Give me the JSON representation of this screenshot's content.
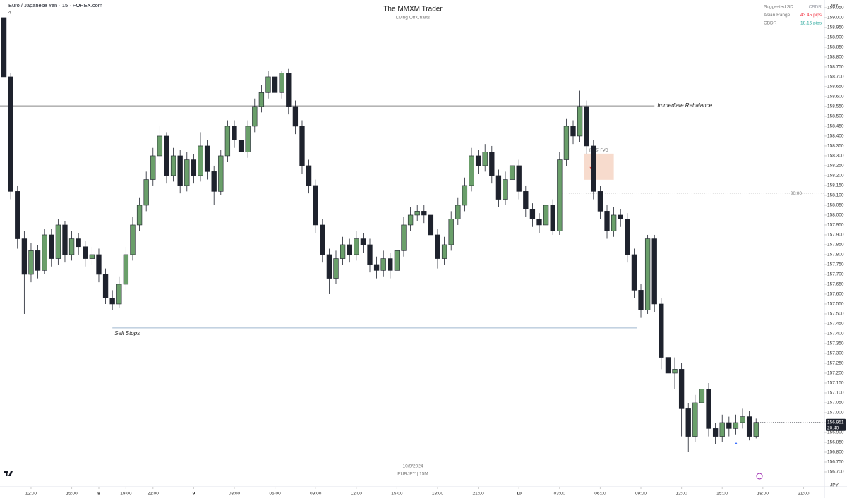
{
  "chart_data": {
    "type": "candlestick",
    "symbol_label": "Euro / Japanese Yen · 15 · FOREX.com",
    "badge": "4",
    "title": "The MMXM Trader",
    "subtitle": "Living Off Charts",
    "footer_date": "10/9/2024",
    "footer_symbol": "EURJPY | 15M",
    "axis_unit": "JPY",
    "last_price_label": "156.951",
    "countdown": "20:40",
    "up_color": "#6a9f6a",
    "down_color": "#1e222d",
    "info_table": [
      {
        "label": "Suggested SD",
        "value": "CBDR",
        "color": "#9598a1"
      },
      {
        "label": "Asian Range",
        "value": "43.45 pips",
        "color": "#f23645"
      },
      {
        "label": "CBDR",
        "value": "18.15 pips",
        "color": "#26a69a"
      }
    ],
    "levels": [
      {
        "label": "Immediate Rebalance",
        "value": 158.553,
        "x_start": -2.29,
        "x_end": 46.0,
        "color": "#888888",
        "style": "solid"
      },
      {
        "label": "Sell Stops",
        "value": 157.429,
        "x_start": 6.0,
        "x_end": 44.7,
        "color": "#9fb6cf",
        "style": "solid"
      },
      {
        "label": "00:00",
        "value": 158.11,
        "x_start": 38.9,
        "x_end": 58.54,
        "color": "#d0d0d0",
        "style": "dotted"
      }
    ],
    "fvg": {
      "label": "[m15] FVG",
      "top": 158.311,
      "bottom": 158.179,
      "x_start": 40.8,
      "x_end": 43.0,
      "color": "#f6d5c4"
    },
    "xlim": [
      -2.29,
      58.54
    ],
    "ylim": [
      156.625,
      159.089
    ],
    "xticks": [
      {
        "value": 0,
        "label": "12:00"
      },
      {
        "value": 3,
        "label": "15:00"
      },
      {
        "value": 5,
        "label": "8"
      },
      {
        "value": 7,
        "label": "19:00"
      },
      {
        "value": 9,
        "label": "21:00"
      },
      {
        "value": 12,
        "label": "9"
      },
      {
        "value": 15,
        "label": "03:00"
      },
      {
        "value": 18,
        "label": "06:00"
      },
      {
        "value": 21,
        "label": "09:00"
      },
      {
        "value": 24,
        "label": "12:00"
      },
      {
        "value": 27,
        "label": "15:00"
      },
      {
        "value": 30,
        "label": "18:00"
      },
      {
        "value": 33,
        "label": "21:00"
      },
      {
        "value": 36,
        "label": "10"
      },
      {
        "value": 39,
        "label": "03:00"
      },
      {
        "value": 42,
        "label": "06:00"
      },
      {
        "value": 45,
        "label": "09:00"
      },
      {
        "value": 48,
        "label": "12:00"
      },
      {
        "value": 51,
        "label": "15:00"
      },
      {
        "value": 54,
        "label": "18:00"
      },
      {
        "value": 57,
        "label": "21:00"
      }
    ],
    "yticks": [
      {
        "value": 156.7,
        "label": "156.700"
      },
      {
        "value": 156.75,
        "label": "156.750"
      },
      {
        "value": 156.8,
        "label": "156.800"
      },
      {
        "value": 156.85,
        "label": "156.850"
      },
      {
        "value": 156.9,
        "label": "156.900"
      },
      {
        "value": 156.95,
        "label": "156.950"
      },
      {
        "value": 157.0,
        "label": "157.000"
      },
      {
        "value": 157.05,
        "label": "157.050"
      },
      {
        "value": 157.1,
        "label": "157.100"
      },
      {
        "value": 157.15,
        "label": "157.150"
      },
      {
        "value": 157.2,
        "label": "157.200"
      },
      {
        "value": 157.25,
        "label": "157.250"
      },
      {
        "value": 157.3,
        "label": "157.300"
      },
      {
        "value": 157.35,
        "label": "157.350"
      },
      {
        "value": 157.4,
        "label": "157.400"
      },
      {
        "value": 157.45,
        "label": "157.450"
      },
      {
        "value": 157.5,
        "label": "157.500"
      },
      {
        "value": 157.55,
        "label": "157.550"
      },
      {
        "value": 157.6,
        "label": "157.600"
      },
      {
        "value": 157.65,
        "label": "157.650"
      },
      {
        "value": 157.7,
        "label": "157.700"
      },
      {
        "value": 157.75,
        "label": "157.750"
      },
      {
        "value": 157.8,
        "label": "157.800"
      },
      {
        "value": 157.85,
        "label": "157.850"
      },
      {
        "value": 157.9,
        "label": "157.900"
      },
      {
        "value": 157.95,
        "label": "157.950"
      },
      {
        "value": 158.0,
        "label": "158.000"
      },
      {
        "value": 158.05,
        "label": "158.050"
      },
      {
        "value": 158.1,
        "label": "158.100"
      },
      {
        "value": 158.15,
        "label": "158.150"
      },
      {
        "value": 158.2,
        "label": "158.200"
      },
      {
        "value": 158.25,
        "label": "158.250"
      },
      {
        "value": 158.3,
        "label": "158.300"
      },
      {
        "value": 158.35,
        "label": "158.350"
      },
      {
        "value": 158.4,
        "label": "158.400"
      },
      {
        "value": 158.45,
        "label": "158.450"
      },
      {
        "value": 158.5,
        "label": "158.500"
      },
      {
        "value": 158.55,
        "label": "158.550"
      },
      {
        "value": 158.6,
        "label": "158.600"
      },
      {
        "value": 158.65,
        "label": "158.650"
      },
      {
        "value": 158.7,
        "label": "158.700"
      },
      {
        "value": 158.75,
        "label": "158.750"
      },
      {
        "value": 158.8,
        "label": "158.800"
      },
      {
        "value": 158.85,
        "label": "158.850"
      },
      {
        "value": 158.9,
        "label": "158.900"
      },
      {
        "value": 158.95,
        "label": "158.950"
      },
      {
        "value": 159.0,
        "label": "159.000"
      },
      {
        "value": 159.05,
        "label": "159.050"
      }
    ],
    "x": [
      -2,
      -1.5,
      -1,
      -0.5,
      0,
      0.5,
      1,
      1.5,
      2,
      2.5,
      3,
      3.5,
      4,
      4.5,
      5,
      5.5,
      6,
      6.5,
      7,
      7.5,
      8,
      8.5,
      9,
      9.5,
      10,
      10.5,
      11,
      11.5,
      12,
      12.5,
      13,
      13.5,
      14,
      14.5,
      15,
      15.5,
      16,
      16.5,
      17,
      17.5,
      18,
      18.5,
      19,
      19.5,
      20,
      20.5,
      21,
      21.5,
      22,
      22.5,
      23,
      23.5,
      24,
      24.5,
      25,
      25.5,
      26,
      26.5,
      27,
      27.5,
      28,
      28.5,
      29,
      29.5,
      30,
      30.5,
      31,
      31.5,
      32,
      32.5,
      33,
      33.5,
      34,
      34.5,
      35,
      35.5,
      36,
      36.5,
      37,
      37.5,
      38,
      38.5,
      39,
      39.5,
      40,
      40.5,
      41,
      41.5,
      42,
      42.5,
      43,
      43.5,
      44,
      44.5,
      45,
      45.5,
      46,
      46.5,
      47,
      47.5,
      48,
      48.5,
      49,
      49.5,
      50,
      50.5,
      51,
      51.5,
      52,
      52.5,
      53,
      53.5
    ],
    "open": [
      159.0,
      158.7,
      158.12,
      157.88,
      157.7,
      157.82,
      157.72,
      157.9,
      157.78,
      157.95,
      157.8,
      157.88,
      157.84,
      157.78,
      157.8,
      157.7,
      157.58,
      157.55,
      157.65,
      157.8,
      157.95,
      158.05,
      158.18,
      158.3,
      158.4,
      158.2,
      158.3,
      158.15,
      158.28,
      158.2,
      158.35,
      158.22,
      158.12,
      158.3,
      158.45,
      158.38,
      158.32,
      158.45,
      158.55,
      158.62,
      158.7,
      158.62,
      158.72,
      158.55,
      158.45,
      158.25,
      158.15,
      157.95,
      157.8,
      157.68,
      157.78,
      157.85,
      157.8,
      157.88,
      157.85,
      157.75,
      157.72,
      157.78,
      157.72,
      157.82,
      157.95,
      158.0,
      158.02,
      158.0,
      157.9,
      157.78,
      157.85,
      157.98,
      158.05,
      158.15,
      158.3,
      158.25,
      158.32,
      158.2,
      158.08,
      158.18,
      158.25,
      158.12,
      158.03,
      157.98,
      157.95,
      158.05,
      157.92,
      158.28,
      158.45,
      158.4,
      158.55,
      158.35,
      158.12,
      158.02,
      157.92,
      158.0,
      157.98,
      157.8,
      157.62,
      157.52,
      157.88,
      157.55,
      157.28,
      157.2,
      157.22,
      157.02,
      156.88,
      157.05,
      157.12,
      156.92,
      156.88,
      156.95,
      156.92,
      156.95,
      156.98,
      156.88
    ],
    "high": [
      159.05,
      158.72,
      158.15,
      157.92,
      157.86,
      157.85,
      157.93,
      157.93,
      157.98,
      157.97,
      157.92,
      157.91,
      157.87,
      157.84,
      157.83,
      157.73,
      157.62,
      157.69,
      157.84,
      157.99,
      158.09,
      158.22,
      158.34,
      158.45,
      158.42,
      158.34,
      158.33,
      158.32,
      158.31,
      158.42,
      158.38,
      158.25,
      158.33,
      158.48,
      158.48,
      158.41,
      158.48,
      158.59,
      158.66,
      158.73,
      158.73,
      158.73,
      158.74,
      158.58,
      158.48,
      158.28,
      158.18,
      157.98,
      157.83,
      157.82,
      157.89,
      157.88,
      157.92,
      157.91,
      157.88,
      157.79,
      157.82,
      157.81,
      157.86,
      157.99,
      158.04,
      158.05,
      158.05,
      158.03,
      157.93,
      157.89,
      158.02,
      158.09,
      158.19,
      158.34,
      158.33,
      158.36,
      158.35,
      158.23,
      158.22,
      158.29,
      158.28,
      158.15,
      158.06,
      158.01,
      158.09,
      158.08,
      158.32,
      158.49,
      158.48,
      158.63,
      158.58,
      158.38,
      158.15,
      158.05,
      158.04,
      158.03,
      158.01,
      157.83,
      157.65,
      157.9,
      157.9,
      157.58,
      157.31,
      157.28,
      157.25,
      157.05,
      157.09,
      157.18,
      157.15,
      156.95,
      156.99,
      156.98,
      156.99,
      157.02,
      157.01,
      156.97
    ],
    "low": [
      158.68,
      158.08,
      157.83,
      157.5,
      157.66,
      157.68,
      157.7,
      157.74,
      157.75,
      157.76,
      157.77,
      157.8,
      157.74,
      157.75,
      157.66,
      157.55,
      157.52,
      157.53,
      157.62,
      157.77,
      157.92,
      158.02,
      158.15,
      158.26,
      158.16,
      158.17,
      158.11,
      158.12,
      158.16,
      158.17,
      158.18,
      158.05,
      158.1,
      158.27,
      158.34,
      158.28,
      158.29,
      158.42,
      158.52,
      158.59,
      158.59,
      158.59,
      158.51,
      158.41,
      158.21,
      158.11,
      157.91,
      157.76,
      157.6,
      157.65,
      157.75,
      157.76,
      157.77,
      157.81,
      157.71,
      157.68,
      157.69,
      157.68,
      157.69,
      157.79,
      157.92,
      157.97,
      157.96,
      157.86,
      157.73,
      157.75,
      157.82,
      157.95,
      158.02,
      158.12,
      158.21,
      158.22,
      158.16,
      158.04,
      158.05,
      158.15,
      158.08,
      157.99,
      157.94,
      157.91,
      157.92,
      157.9,
      157.9,
      158.25,
      158.36,
      158.37,
      158.31,
      158.08,
      157.98,
      157.88,
      157.89,
      157.94,
      157.76,
      157.58,
      157.48,
      157.5,
      157.51,
      157.22,
      157.1,
      157.12,
      156.88,
      156.8,
      156.85,
      157.0,
      156.88,
      156.84,
      156.85,
      156.88,
      156.89,
      156.92,
      156.86,
      156.87
    ],
    "close": [
      158.7,
      158.12,
      157.88,
      157.7,
      157.82,
      157.72,
      157.9,
      157.78,
      157.95,
      157.8,
      157.88,
      157.84,
      157.78,
      157.8,
      157.7,
      157.58,
      157.55,
      157.65,
      157.8,
      157.95,
      158.05,
      158.18,
      158.3,
      158.4,
      158.2,
      158.3,
      158.15,
      158.28,
      158.2,
      158.35,
      158.22,
      158.12,
      158.3,
      158.45,
      158.38,
      158.32,
      158.45,
      158.55,
      158.62,
      158.7,
      158.62,
      158.72,
      158.55,
      158.45,
      158.25,
      158.15,
      157.95,
      157.8,
      157.68,
      157.78,
      157.85,
      157.8,
      157.88,
      157.85,
      157.75,
      157.72,
      157.78,
      157.72,
      157.82,
      157.95,
      158.0,
      158.02,
      158.0,
      157.9,
      157.78,
      157.85,
      157.98,
      158.05,
      158.15,
      158.3,
      158.25,
      158.32,
      158.2,
      158.08,
      158.18,
      158.25,
      158.12,
      158.03,
      157.98,
      157.95,
      158.05,
      157.92,
      158.28,
      158.45,
      158.4,
      158.55,
      158.35,
      158.12,
      158.02,
      157.92,
      158.0,
      157.98,
      157.8,
      157.62,
      157.52,
      157.88,
      157.55,
      157.28,
      157.2,
      157.22,
      157.02,
      156.88,
      157.05,
      157.12,
      156.92,
      156.88,
      156.95,
      156.92,
      156.95,
      156.98,
      156.88,
      156.951
    ]
  }
}
